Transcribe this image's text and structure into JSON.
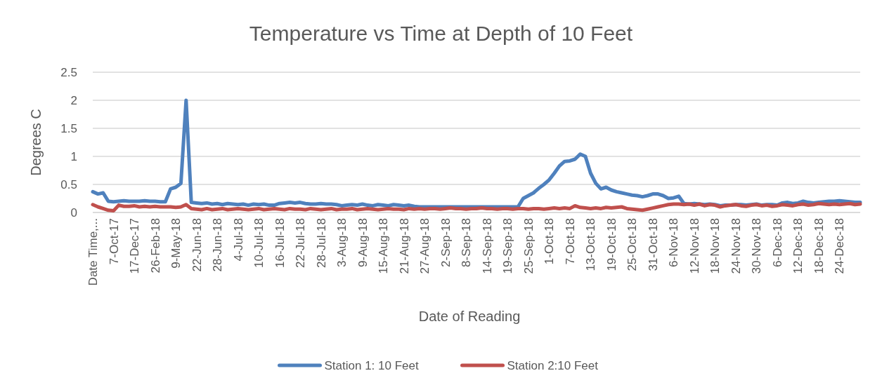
{
  "chart_data": {
    "type": "line",
    "title": "Temperature vs Time at Depth of 10 Feet",
    "xlabel": "Date of Reading",
    "ylabel": "Degrees C",
    "categories": [
      "Date Time,...",
      null,
      null,
      null,
      "7-Oct-17",
      null,
      null,
      null,
      "17-Dec-17",
      null,
      null,
      null,
      "26-Feb-18",
      null,
      null,
      null,
      "9-May-18",
      null,
      null,
      null,
      "22-Jun-18",
      null,
      null,
      null,
      "28-Jun-18",
      null,
      null,
      null,
      "4-Jul-18",
      null,
      null,
      null,
      "10-Jul-18",
      null,
      null,
      null,
      "16-Jul-18",
      null,
      null,
      null,
      "22-Jul-18",
      null,
      null,
      null,
      "28-Jul-18",
      null,
      null,
      null,
      "3-Aug-18",
      null,
      null,
      null,
      "9-Aug-18",
      null,
      null,
      null,
      "15-Aug-18",
      null,
      null,
      null,
      "21-Aug-18",
      null,
      null,
      null,
      "27-Aug-18",
      null,
      null,
      null,
      "2-Sep-18",
      null,
      null,
      null,
      "8-Sep-18",
      null,
      null,
      null,
      "14-Sep-18",
      null,
      null,
      null,
      "19-Sep-18",
      null,
      null,
      null,
      "25-Sep-18",
      null,
      null,
      null,
      "1-Oct-18",
      null,
      null,
      null,
      "7-Oct-18",
      null,
      null,
      null,
      "13-Oct-18",
      null,
      null,
      null,
      "19-Oct-18",
      null,
      null,
      null,
      "25-Oct-18",
      null,
      null,
      null,
      "31-Oct-18",
      null,
      null,
      null,
      "6-Nov-18",
      null,
      null,
      null,
      "12-Nov-18",
      null,
      null,
      null,
      "18-Nov-18",
      null,
      null,
      null,
      "24-Nov-18",
      null,
      null,
      null,
      "30-Nov-18",
      null,
      null,
      null,
      "6-Dec-18",
      null,
      null,
      null,
      "12-Dec-18",
      null,
      null,
      null,
      "18-Dec-18",
      null,
      null,
      null,
      "24-Dec-18",
      null,
      null,
      null,
      null
    ],
    "series": [
      {
        "name": "Station 1: 10 Feet",
        "color": "#4f81bd",
        "values": [
          0.37,
          0.33,
          0.35,
          0.2,
          0.19,
          0.2,
          0.21,
          0.2,
          0.2,
          0.2,
          0.21,
          0.2,
          0.2,
          0.19,
          0.19,
          0.42,
          0.45,
          0.52,
          2.0,
          0.18,
          0.17,
          0.16,
          0.17,
          0.15,
          0.16,
          0.14,
          0.16,
          0.15,
          0.14,
          0.15,
          0.13,
          0.15,
          0.14,
          0.15,
          0.13,
          0.13,
          0.16,
          0.17,
          0.18,
          0.17,
          0.18,
          0.16,
          0.15,
          0.15,
          0.16,
          0.15,
          0.15,
          0.14,
          0.12,
          0.13,
          0.14,
          0.13,
          0.15,
          0.13,
          0.12,
          0.14,
          0.13,
          0.12,
          0.14,
          0.13,
          0.12,
          0.13,
          0.11,
          0.1,
          0.1,
          0.1,
          0.1,
          0.1,
          0.1,
          0.1,
          0.1,
          0.1,
          0.1,
          0.1,
          0.1,
          0.1,
          0.1,
          0.1,
          0.1,
          0.1,
          0.1,
          0.1,
          0.1,
          0.25,
          0.3,
          0.35,
          0.43,
          0.5,
          0.58,
          0.7,
          0.83,
          0.91,
          0.92,
          0.95,
          1.04,
          1.0,
          0.7,
          0.52,
          0.42,
          0.45,
          0.4,
          0.37,
          0.35,
          0.33,
          0.31,
          0.3,
          0.28,
          0.3,
          0.33,
          0.33,
          0.3,
          0.25,
          0.26,
          0.29,
          0.16,
          0.15,
          0.16,
          0.15,
          0.14,
          0.15,
          0.14,
          0.12,
          0.13,
          0.13,
          0.14,
          0.14,
          0.13,
          0.14,
          0.15,
          0.13,
          0.14,
          0.14,
          0.13,
          0.17,
          0.18,
          0.16,
          0.17,
          0.2,
          0.18,
          0.17,
          0.18,
          0.19,
          0.2,
          0.2,
          0.21,
          0.2,
          0.19,
          0.18,
          0.18
        ]
      },
      {
        "name": "Station 2:10 Feet",
        "color": "#c0504d",
        "values": [
          0.14,
          0.1,
          0.07,
          0.04,
          0.03,
          0.13,
          0.11,
          0.11,
          0.12,
          0.1,
          0.11,
          0.1,
          0.11,
          0.1,
          0.1,
          0.1,
          0.09,
          0.1,
          0.14,
          0.07,
          0.06,
          0.05,
          0.07,
          0.05,
          0.06,
          0.07,
          0.05,
          0.06,
          0.07,
          0.06,
          0.05,
          0.06,
          0.07,
          0.05,
          0.06,
          0.07,
          0.06,
          0.05,
          0.07,
          0.06,
          0.06,
          0.05,
          0.07,
          0.06,
          0.05,
          0.06,
          0.07,
          0.05,
          0.06,
          0.06,
          0.07,
          0.05,
          0.06,
          0.07,
          0.06,
          0.05,
          0.06,
          0.07,
          0.06,
          0.06,
          0.05,
          0.07,
          0.06,
          0.07,
          0.06,
          0.07,
          0.07,
          0.06,
          0.07,
          0.08,
          0.07,
          0.07,
          0.06,
          0.07,
          0.07,
          0.08,
          0.07,
          0.07,
          0.06,
          0.07,
          0.07,
          0.06,
          0.07,
          0.07,
          0.06,
          0.07,
          0.07,
          0.06,
          0.07,
          0.08,
          0.07,
          0.08,
          0.07,
          0.12,
          0.09,
          0.08,
          0.07,
          0.08,
          0.07,
          0.09,
          0.08,
          0.09,
          0.1,
          0.07,
          0.06,
          0.05,
          0.04,
          0.06,
          0.08,
          0.1,
          0.12,
          0.14,
          0.15,
          0.15,
          0.14,
          0.15,
          0.13,
          0.15,
          0.12,
          0.14,
          0.13,
          0.1,
          0.12,
          0.13,
          0.14,
          0.12,
          0.11,
          0.13,
          0.14,
          0.12,
          0.13,
          0.11,
          0.12,
          0.14,
          0.13,
          0.12,
          0.14,
          0.15,
          0.13,
          0.14,
          0.16,
          0.15,
          0.14,
          0.15,
          0.14,
          0.15,
          0.16,
          0.14,
          0.15
        ]
      }
    ],
    "ylim": [
      0,
      2.5
    ],
    "yticks": [
      0,
      0.5,
      1,
      1.5,
      2,
      2.5
    ],
    "grid": "y",
    "legend": "bottom",
    "line_style": "solid",
    "marker": "none"
  }
}
